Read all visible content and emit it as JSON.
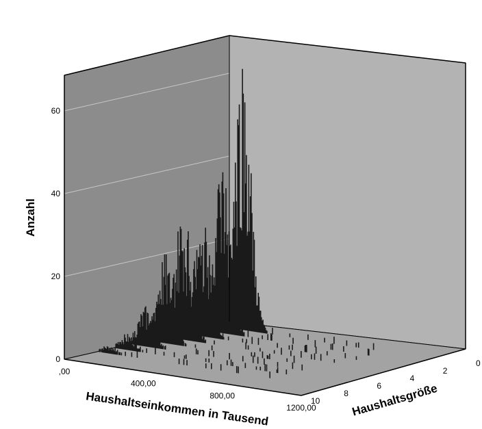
{
  "chart_data": {
    "type": "3d-bar-histogram",
    "ylabel": "Anzahl",
    "xlabel": "Haushaltseinkommen in Tausend",
    "zlabel": "Haushaltsgröße",
    "y_ticks": [
      "0",
      "20",
      "40",
      "60"
    ],
    "x_ticks": [
      ",00",
      "400,00",
      "800,00",
      "1200,00"
    ],
    "z_ticks": [
      "0",
      "2",
      "4",
      "6",
      "8",
      "10"
    ],
    "ylim": [
      0,
      70
    ],
    "xlim": [
      0,
      1200
    ],
    "zlim": [
      0,
      10
    ],
    "grid": true,
    "series": [
      {
        "household_size": 1,
        "income_peak": 150,
        "peak_count": 68
      },
      {
        "household_size": 2,
        "income_peak": 130,
        "peak_count": 43
      },
      {
        "household_size": 3,
        "income_peak": 115,
        "peak_count": 29
      },
      {
        "household_size": 4,
        "income_peak": 100,
        "peak_count": 33
      },
      {
        "household_size": 5,
        "income_peak": 90,
        "peak_count": 22
      },
      {
        "household_size": 6,
        "income_peak": 80,
        "peak_count": 10
      },
      {
        "household_size": 7,
        "income_peak": 70,
        "peak_count": 4
      },
      {
        "household_size": 8,
        "income_peak": 60,
        "peak_count": 2
      }
    ],
    "colors": {
      "back_wall": "#8c8c8c",
      "side_wall": "#b3b3b3",
      "floor": "#a3a3a3",
      "bars": "#1a1a1a",
      "gridline": "#c8c8c8"
    }
  }
}
